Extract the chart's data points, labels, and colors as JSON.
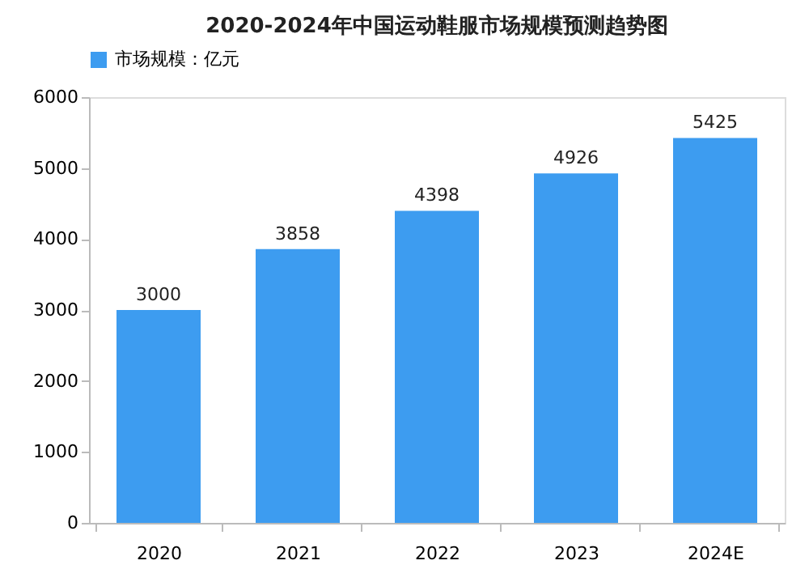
{
  "chart_data": {
    "type": "bar",
    "title": "2020-2024年中国运动鞋服市场规模预测趋势图",
    "categories": [
      "2020",
      "2021",
      "2022",
      "2023",
      "2024E"
    ],
    "series": [
      {
        "name": "市场规模：亿元",
        "color": "#3d9cf0",
        "values": [
          3000,
          3858,
          4398,
          4926,
          5425
        ]
      }
    ],
    "ylim": [
      0,
      6000
    ],
    "yticks": [
      0,
      1000,
      2000,
      3000,
      4000,
      5000,
      6000
    ],
    "data_labels": true,
    "legend": "top",
    "grid": false
  }
}
